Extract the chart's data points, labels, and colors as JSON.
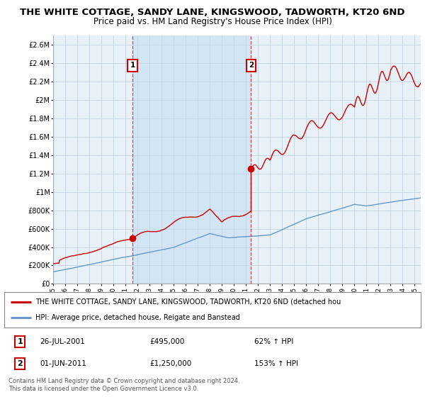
{
  "title": "THE WHITE COTTAGE, SANDY LANE, KINGSWOOD, TADWORTH, KT20 6ND",
  "subtitle": "Price paid vs. HM Land Registry's House Price Index (HPI)",
  "title_fontsize": 9.5,
  "subtitle_fontsize": 8.5,
  "xmin": 1995.0,
  "xmax": 2025.5,
  "ymin": 0,
  "ymax": 2700000,
  "yticks": [
    0,
    200000,
    400000,
    600000,
    800000,
    1000000,
    1200000,
    1400000,
    1600000,
    1800000,
    2000000,
    2200000,
    2400000,
    2600000
  ],
  "ytick_labels": [
    "£0",
    "£200K",
    "£400K",
    "£600K",
    "£800K",
    "£1M",
    "£1.2M",
    "£1.4M",
    "£1.6M",
    "£1.8M",
    "£2M",
    "£2.2M",
    "£2.4M",
    "£2.6M"
  ],
  "grid_color": "#c8d8e8",
  "background_color": "#ffffff",
  "plot_bg_color": "#e8f0f8",
  "shade_color": "#d0e4f4",
  "red_line_color": "#cc0000",
  "blue_line_color": "#6699cc",
  "transaction1_x": 2001.58,
  "transaction1_y": 495000,
  "transaction2_x": 2011.42,
  "transaction2_y": 1250000,
  "legend_red": "THE WHITE COTTAGE, SANDY LANE, KINGSWOOD, TADWORTH, KT20 6ND (detached hou",
  "legend_blue": "HPI: Average price, detached house, Reigate and Banstead",
  "ann1_date": "26-JUL-2001",
  "ann1_price": "£495,000",
  "ann1_hpi": "62% ↑ HPI",
  "ann2_date": "01-JUN-2011",
  "ann2_price": "£1,250,000",
  "ann2_hpi": "153% ↑ HPI",
  "footer": "Contains HM Land Registry data © Crown copyright and database right 2024.\nThis data is licensed under the Open Government Licence v3.0."
}
